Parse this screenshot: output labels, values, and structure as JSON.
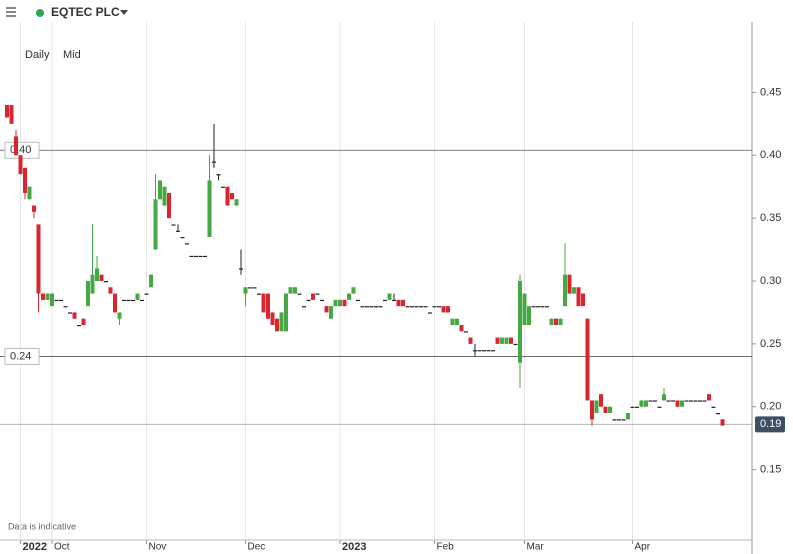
{
  "header": {
    "title": "EQTEC PLC"
  },
  "chart_data": {
    "type": "candlestick",
    "interval": "Daily",
    "price_type": "Mid",
    "note": "Data is indicative",
    "categories": [
      null,
      null,
      null,
      "2022",
      null,
      null,
      null,
      null,
      null,
      null,
      "Oct",
      null,
      null,
      null,
      null,
      null,
      null,
      null,
      null,
      null,
      null,
      null,
      null,
      null,
      null,
      null,
      null,
      null,
      null,
      null,
      null,
      "Nov",
      null,
      null,
      null,
      null,
      null,
      null,
      null,
      null,
      null,
      null,
      null,
      null,
      null,
      null,
      null,
      null,
      null,
      null,
      null,
      null,
      null,
      "Dec",
      null,
      null,
      null,
      null,
      null,
      null,
      null,
      null,
      null,
      null,
      null,
      null,
      null,
      null,
      null,
      null,
      null,
      null,
      null,
      null,
      "2023",
      null,
      null,
      null,
      null,
      null,
      null,
      null,
      null,
      null,
      null,
      null,
      null,
      null,
      null,
      null,
      null,
      null,
      null,
      null,
      null,
      "Feb",
      null,
      null,
      null,
      null,
      null,
      null,
      null,
      null,
      null,
      null,
      null,
      null,
      null,
      null,
      null,
      null,
      null,
      null,
      null,
      "Mar",
      null,
      null,
      null,
      null,
      null,
      null,
      null,
      null,
      null,
      null,
      null,
      null,
      null,
      null,
      null,
      null,
      null,
      null,
      null,
      null,
      null,
      null,
      null,
      "Apr",
      null,
      null,
      null,
      null,
      null,
      null,
      null,
      null,
      null,
      null,
      null,
      null,
      null,
      null,
      null,
      null,
      null,
      null,
      null,
      null
    ],
    "open": [
      0.44,
      0.44,
      0.415,
      0.4,
      0.39,
      0.365,
      0.36,
      0.345,
      0.29,
      0.285,
      0.28,
      0.285,
      0.285,
      0.28,
      0.275,
      0.275,
      0.265,
      0.27,
      0.28,
      0.29,
      0.3,
      0.305,
      0.3,
      0.295,
      0.29,
      0.27,
      0.285,
      0.285,
      0.285,
      0.285,
      0.285,
      0.29,
      0.295,
      0.325,
      0.365,
      0.36,
      0.37,
      0.345,
      0.34,
      0.335,
      0.33,
      0.32,
      0.32,
      0.32,
      0.32,
      0.335,
      0.395,
      0.385,
      0.375,
      0.375,
      0.37,
      0.36,
      0.31,
      0.29,
      0.295,
      0.295,
      0.29,
      0.29,
      0.29,
      0.275,
      0.27,
      0.26,
      0.26,
      0.29,
      0.29,
      0.29,
      0.28,
      0.285,
      0.29,
      0.29,
      0.285,
      0.28,
      0.27,
      0.28,
      0.28,
      0.285,
      0.285,
      0.29,
      0.285,
      0.28,
      0.28,
      0.28,
      0.28,
      0.28,
      0.285,
      0.285,
      0.285,
      0.285,
      0.285,
      0.28,
      0.28,
      0.28,
      0.28,
      0.28,
      0.275,
      0.28,
      0.28,
      0.28,
      0.28,
      0.265,
      0.265,
      0.265,
      0.26,
      0.255,
      0.245,
      0.245,
      0.245,
      0.245,
      0.245,
      0.255,
      0.25,
      0.25,
      0.255,
      0.25,
      0.235,
      0.265,
      0.265,
      0.28,
      0.28,
      0.28,
      0.28,
      0.265,
      0.27,
      0.265,
      0.28,
      0.305,
      0.29,
      0.295,
      0.29,
      0.27,
      0.205,
      0.195,
      0.21,
      0.2,
      0.195,
      0.19,
      0.19,
      0.19,
      0.19,
      0.2,
      0.2,
      0.2,
      0.2,
      0.205,
      0.205,
      0.2,
      0.205,
      0.205,
      0.205,
      0.205,
      0.2,
      0.205,
      0.205,
      0.205,
      0.205,
      0.205,
      0.21,
      0.2,
      0.195,
      0.19
    ],
    "high": [
      0.44,
      0.44,
      0.42,
      0.4,
      0.39,
      0.375,
      0.36,
      0.345,
      0.29,
      0.29,
      0.29,
      0.285,
      0.285,
      0.28,
      0.275,
      0.275,
      0.265,
      0.27,
      0.3,
      0.345,
      0.32,
      0.305,
      0.3,
      0.295,
      0.29,
      0.275,
      0.285,
      0.285,
      0.285,
      0.29,
      0.285,
      0.29,
      0.305,
      0.385,
      0.38,
      0.375,
      0.37,
      0.345,
      0.345,
      0.335,
      0.33,
      0.32,
      0.32,
      0.32,
      0.32,
      0.4,
      0.425,
      0.385,
      0.375,
      0.375,
      0.37,
      0.365,
      0.325,
      0.295,
      0.295,
      0.295,
      0.29,
      0.29,
      0.29,
      0.275,
      0.27,
      0.275,
      0.29,
      0.295,
      0.295,
      0.29,
      0.28,
      0.285,
      0.29,
      0.29,
      0.285,
      0.28,
      0.28,
      0.285,
      0.285,
      0.285,
      0.29,
      0.295,
      0.285,
      0.28,
      0.28,
      0.28,
      0.28,
      0.28,
      0.285,
      0.29,
      0.29,
      0.285,
      0.285,
      0.28,
      0.28,
      0.28,
      0.28,
      0.28,
      0.275,
      0.28,
      0.28,
      0.28,
      0.28,
      0.27,
      0.27,
      0.265,
      0.26,
      0.255,
      0.25,
      0.245,
      0.245,
      0.245,
      0.245,
      0.255,
      0.255,
      0.255,
      0.255,
      0.25,
      0.305,
      0.29,
      0.28,
      0.28,
      0.28,
      0.28,
      0.28,
      0.27,
      0.27,
      0.27,
      0.33,
      0.305,
      0.295,
      0.295,
      0.29,
      0.27,
      0.205,
      0.205,
      0.21,
      0.2,
      0.2,
      0.19,
      0.19,
      0.19,
      0.195,
      0.2,
      0.2,
      0.205,
      0.205,
      0.205,
      0.205,
      0.2,
      0.215,
      0.205,
      0.205,
      0.205,
      0.205,
      0.205,
      0.205,
      0.205,
      0.205,
      0.205,
      0.21,
      0.2,
      0.195,
      0.19
    ],
    "low": [
      0.43,
      0.425,
      0.4,
      0.385,
      0.365,
      0.365,
      0.35,
      0.275,
      0.285,
      0.285,
      0.28,
      0.285,
      0.285,
      0.28,
      0.275,
      0.27,
      0.265,
      0.265,
      0.28,
      0.29,
      0.3,
      0.3,
      0.3,
      0.29,
      0.275,
      0.265,
      0.285,
      0.285,
      0.285,
      0.285,
      0.285,
      0.29,
      0.295,
      0.325,
      0.365,
      0.36,
      0.35,
      0.345,
      0.34,
      0.335,
      0.33,
      0.32,
      0.32,
      0.32,
      0.32,
      0.335,
      0.39,
      0.38,
      0.375,
      0.36,
      0.365,
      0.36,
      0.305,
      0.28,
      0.295,
      0.295,
      0.29,
      0.275,
      0.27,
      0.265,
      0.26,
      0.26,
      0.26,
      0.29,
      0.29,
      0.29,
      0.28,
      0.285,
      0.285,
      0.29,
      0.285,
      0.275,
      0.27,
      0.28,
      0.28,
      0.28,
      0.285,
      0.29,
      0.285,
      0.28,
      0.28,
      0.28,
      0.28,
      0.28,
      0.285,
      0.285,
      0.285,
      0.28,
      0.28,
      0.28,
      0.28,
      0.28,
      0.28,
      0.28,
      0.275,
      0.28,
      0.28,
      0.275,
      0.275,
      0.265,
      0.265,
      0.26,
      0.26,
      0.25,
      0.24,
      0.245,
      0.245,
      0.245,
      0.245,
      0.25,
      0.25,
      0.25,
      0.25,
      0.25,
      0.215,
      0.265,
      0.265,
      0.28,
      0.28,
      0.28,
      0.28,
      0.265,
      0.265,
      0.265,
      0.28,
      0.29,
      0.29,
      0.28,
      0.28,
      0.205,
      0.185,
      0.195,
      0.2,
      0.195,
      0.195,
      0.19,
      0.19,
      0.19,
      0.19,
      0.2,
      0.2,
      0.2,
      0.2,
      0.205,
      0.205,
      0.2,
      0.205,
      0.205,
      0.205,
      0.2,
      0.2,
      0.205,
      0.205,
      0.205,
      0.205,
      0.205,
      0.205,
      0.2,
      0.195,
      0.185
    ],
    "close": [
      0.43,
      0.425,
      0.4,
      0.385,
      0.37,
      0.375,
      0.355,
      0.29,
      0.285,
      0.29,
      0.29,
      0.285,
      0.285,
      0.28,
      0.275,
      0.27,
      0.265,
      0.265,
      0.3,
      0.305,
      0.31,
      0.3,
      0.3,
      0.29,
      0.275,
      0.275,
      0.285,
      0.285,
      0.285,
      0.29,
      0.285,
      0.29,
      0.305,
      0.365,
      0.38,
      0.375,
      0.35,
      0.345,
      0.34,
      0.335,
      0.33,
      0.32,
      0.32,
      0.32,
      0.32,
      0.38,
      0.395,
      0.385,
      0.375,
      0.36,
      0.365,
      0.365,
      0.31,
      0.295,
      0.295,
      0.295,
      0.29,
      0.275,
      0.27,
      0.265,
      0.26,
      0.275,
      0.29,
      0.295,
      0.295,
      0.29,
      0.28,
      0.285,
      0.285,
      0.29,
      0.285,
      0.275,
      0.28,
      0.285,
      0.285,
      0.28,
      0.29,
      0.295,
      0.285,
      0.28,
      0.28,
      0.28,
      0.28,
      0.28,
      0.285,
      0.29,
      0.285,
      0.28,
      0.28,
      0.28,
      0.28,
      0.28,
      0.28,
      0.28,
      0.275,
      0.28,
      0.28,
      0.275,
      0.275,
      0.27,
      0.27,
      0.26,
      0.26,
      0.25,
      0.245,
      0.245,
      0.245,
      0.245,
      0.245,
      0.25,
      0.255,
      0.255,
      0.25,
      0.25,
      0.3,
      0.29,
      0.28,
      0.28,
      0.28,
      0.28,
      0.28,
      0.27,
      0.265,
      0.27,
      0.305,
      0.29,
      0.295,
      0.28,
      0.28,
      0.205,
      0.19,
      0.205,
      0.2,
      0.195,
      0.2,
      0.19,
      0.19,
      0.19,
      0.195,
      0.2,
      0.2,
      0.205,
      0.205,
      0.205,
      0.205,
      0.2,
      0.21,
      0.205,
      0.205,
      0.2,
      0.205,
      0.205,
      0.205,
      0.205,
      0.205,
      0.205,
      0.205,
      0.2,
      0.195,
      0.185
    ],
    "up_color": "#45a845",
    "down_color": "#d9262e",
    "flat_color": "#222222",
    "ylim": [
      0.094,
      0.506
    ],
    "yticks": [
      0.15,
      {
        "value": 0.2,
        "label": "0.20"
      },
      0.25,
      {
        "value": 0.3,
        "label": "0.30"
      },
      0.35,
      {
        "value": 0.4,
        "label": "0.40"
      },
      0.45
    ],
    "reference_lines": [
      {
        "value": 0.404,
        "label": "0.40"
      },
      {
        "value": 0.24,
        "label": "0.24"
      }
    ],
    "last_price": {
      "value": 0.186,
      "label": "0.19"
    },
    "grid": true
  }
}
